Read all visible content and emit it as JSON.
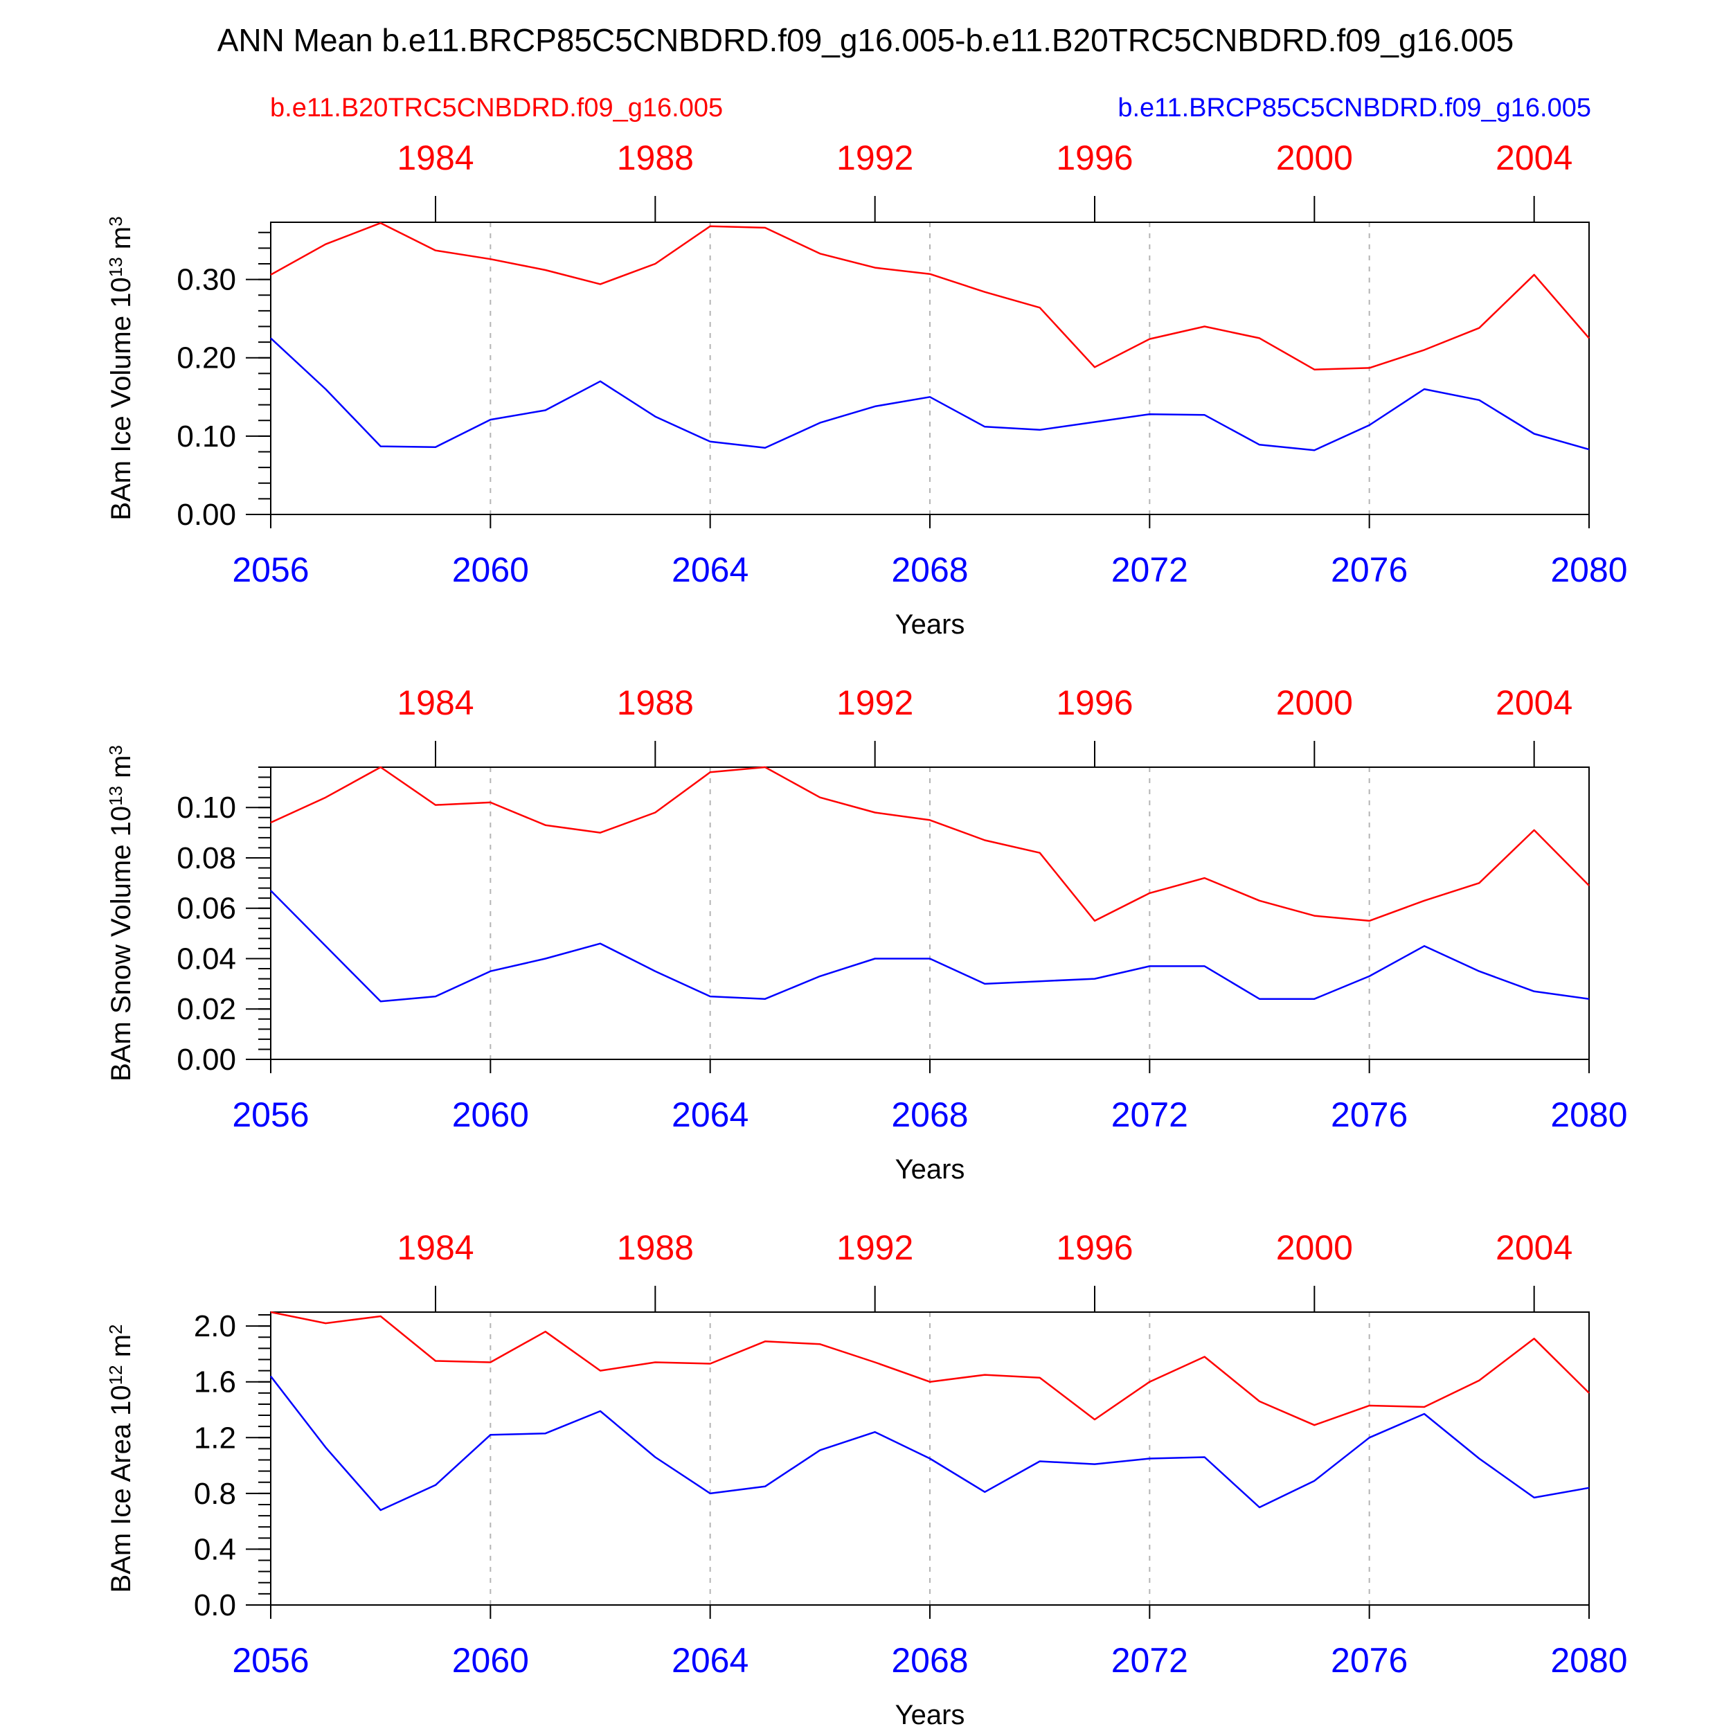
{
  "title": "ANN Mean b.e11.BRCP85C5CNBDRD.f09_g16.005-b.e11.B20TRC5CNBDRD.f09_g16.005",
  "ref_label_left": "b.e11.B20TRC5CNBDRD.f09_g16.005",
  "ref_label_right": "b.e11.BRCP85C5CNBDRD.f09_g16.005",
  "colors": {
    "red": "#ff0000",
    "blue": "#0000ff",
    "black": "#000000",
    "grid": "#b4b4b4"
  },
  "chart_data": [
    {
      "type": "line",
      "xlabel": "Years",
      "ylabel": "BAm Ice Volume 10",
      "ylabel_exp": "13",
      "ylabel_unit": " m",
      "ylabel_unit_exp": "3",
      "ylim": [
        0,
        0.373
      ],
      "yticks": [
        "0.00",
        "0.10",
        "0.20",
        "0.30"
      ],
      "ytick_values": [
        0,
        0.1,
        0.2,
        0.3
      ],
      "y_minor_step": 0.02,
      "xlim": [
        2056,
        2080
      ],
      "x_bottom_ticks": [
        "2056",
        "2060",
        "2064",
        "2068",
        "2072",
        "2076",
        "2080"
      ],
      "x_top_ticks": [
        "1984",
        "1988",
        "1992",
        "1996",
        "2000",
        "2004"
      ],
      "x": [
        2056,
        2057,
        2058,
        2059,
        2060,
        2061,
        2062,
        2063,
        2064,
        2065,
        2066,
        2067,
        2068,
        2069,
        2070,
        2071,
        2072,
        2073,
        2074,
        2075,
        2076,
        2077,
        2078,
        2079,
        2080
      ],
      "series": [
        {
          "color": "#ff0000",
          "values": [
            0.306,
            0.345,
            0.372,
            0.337,
            0.326,
            0.312,
            0.294,
            0.32,
            0.368,
            0.366,
            0.333,
            0.315,
            0.307,
            0.284,
            0.264,
            0.188,
            0.224,
            0.24,
            0.225,
            0.185,
            0.187,
            0.21,
            0.238,
            0.306,
            0.225
          ]
        },
        {
          "color": "#0000ff",
          "values": [
            0.225,
            0.16,
            0.087,
            0.086,
            0.121,
            0.133,
            0.17,
            0.125,
            0.093,
            0.085,
            0.117,
            0.138,
            0.15,
            0.112,
            0.108,
            0.118,
            0.128,
            0.127,
            0.089,
            0.082,
            0.114,
            0.16,
            0.146,
            0.103,
            0.083
          ]
        }
      ]
    },
    {
      "type": "line",
      "xlabel": "Years",
      "ylabel": "BAm Snow Volume 10",
      "ylabel_exp": "13",
      "ylabel_unit": " m",
      "ylabel_unit_exp": "3",
      "ylim": [
        0,
        0.116
      ],
      "yticks": [
        "0.00",
        "0.02",
        "0.04",
        "0.06",
        "0.08",
        "0.10"
      ],
      "ytick_values": [
        0,
        0.02,
        0.04,
        0.06,
        0.08,
        0.1
      ],
      "y_minor_step": 0.004,
      "xlim": [
        2056,
        2080
      ],
      "x_bottom_ticks": [
        "2056",
        "2060",
        "2064",
        "2068",
        "2072",
        "2076",
        "2080"
      ],
      "x_top_ticks": [
        "1984",
        "1988",
        "1992",
        "1996",
        "2000",
        "2004"
      ],
      "x": [
        2056,
        2057,
        2058,
        2059,
        2060,
        2061,
        2062,
        2063,
        2064,
        2065,
        2066,
        2067,
        2068,
        2069,
        2070,
        2071,
        2072,
        2073,
        2074,
        2075,
        2076,
        2077,
        2078,
        2079,
        2080
      ],
      "series": [
        {
          "color": "#ff0000",
          "values": [
            0.094,
            0.104,
            0.116,
            0.101,
            0.102,
            0.093,
            0.09,
            0.098,
            0.114,
            0.116,
            0.104,
            0.098,
            0.095,
            0.087,
            0.082,
            0.055,
            0.066,
            0.072,
            0.063,
            0.057,
            0.055,
            0.063,
            0.07,
            0.091,
            0.069
          ]
        },
        {
          "color": "#0000ff",
          "values": [
            0.067,
            0.045,
            0.023,
            0.025,
            0.035,
            0.04,
            0.046,
            0.035,
            0.025,
            0.024,
            0.033,
            0.04,
            0.04,
            0.03,
            0.031,
            0.032,
            0.037,
            0.037,
            0.024,
            0.024,
            0.033,
            0.045,
            0.035,
            0.027,
            0.024
          ]
        }
      ]
    },
    {
      "type": "line",
      "xlabel": "Years",
      "ylabel": "BAm Ice Area 10",
      "ylabel_exp": "12",
      "ylabel_unit": " m",
      "ylabel_unit_exp": "2",
      "ylim": [
        0,
        2.1
      ],
      "yticks": [
        "0.0",
        "0.4",
        "0.8",
        "1.2",
        "1.6",
        "2.0"
      ],
      "ytick_values": [
        0,
        0.4,
        0.8,
        1.2,
        1.6,
        2.0
      ],
      "y_minor_step": 0.08,
      "xlim": [
        2056,
        2080
      ],
      "x_bottom_ticks": [
        "2056",
        "2060",
        "2064",
        "2068",
        "2072",
        "2076",
        "2080"
      ],
      "x_top_ticks": [
        "1984",
        "1988",
        "1992",
        "1996",
        "2000",
        "2004"
      ],
      "x": [
        2056,
        2057,
        2058,
        2059,
        2060,
        2061,
        2062,
        2063,
        2064,
        2065,
        2066,
        2067,
        2068,
        2069,
        2070,
        2071,
        2072,
        2073,
        2074,
        2075,
        2076,
        2077,
        2078,
        2079,
        2080
      ],
      "series": [
        {
          "color": "#ff0000",
          "values": [
            2.1,
            2.02,
            2.07,
            1.75,
            1.74,
            1.96,
            1.68,
            1.74,
            1.73,
            1.89,
            1.87,
            1.74,
            1.6,
            1.65,
            1.63,
            1.33,
            1.6,
            1.78,
            1.46,
            1.29,
            1.43,
            1.42,
            1.61,
            1.91,
            1.52
          ]
        },
        {
          "color": "#0000ff",
          "values": [
            1.64,
            1.13,
            0.68,
            0.86,
            1.22,
            1.23,
            1.39,
            1.06,
            0.8,
            0.85,
            1.11,
            1.24,
            1.05,
            0.81,
            1.03,
            1.01,
            1.05,
            1.06,
            0.7,
            0.89,
            1.2,
            1.37,
            1.05,
            0.77,
            0.84
          ]
        }
      ]
    }
  ]
}
